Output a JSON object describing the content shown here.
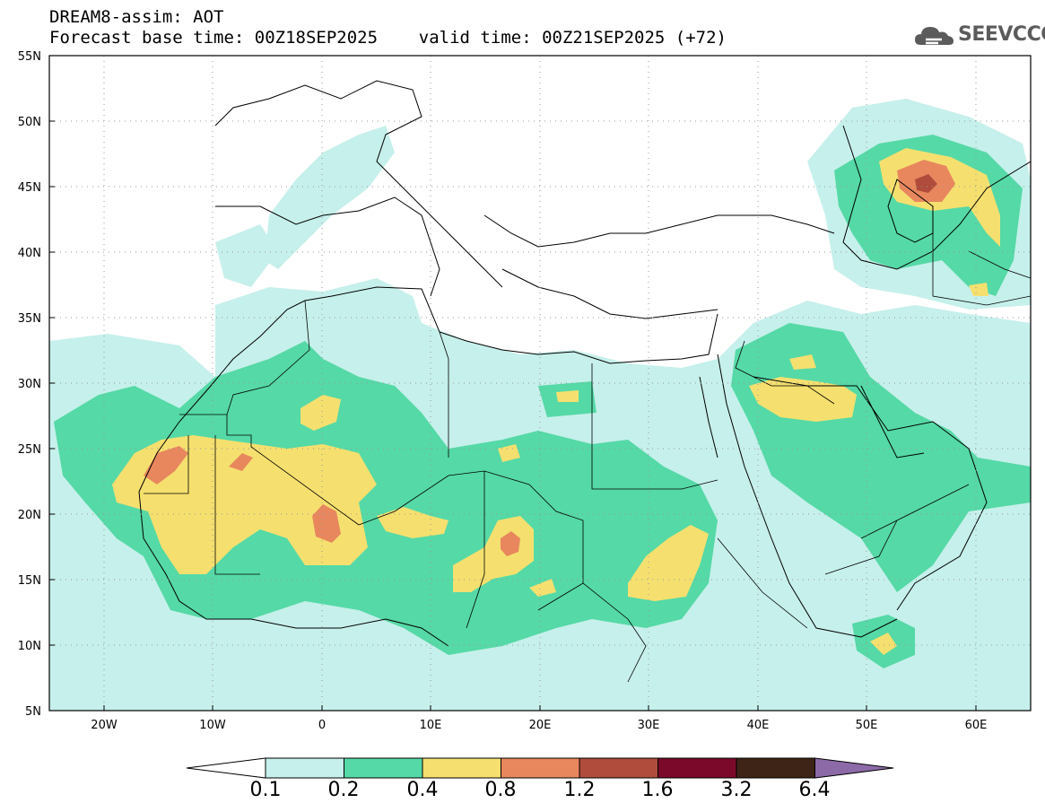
{
  "header": {
    "line1": "DREAM8-assim: AOT",
    "line2": "Forecast base time: 00Z18SEP2025    valid time: 00Z21SEP2025 (+72)"
  },
  "logo": {
    "text": "SEEVCCC",
    "icon": "cloud-logo-icon"
  },
  "map": {
    "lon_range": [
      -25,
      65
    ],
    "lat_range": [
      5,
      55
    ],
    "lat_labels": [
      "55N",
      "50N",
      "45N",
      "40N",
      "35N",
      "30N",
      "25N",
      "20N",
      "15N",
      "10N",
      "5N"
    ],
    "lon_labels": [
      "20W",
      "10W",
      "0",
      "10E",
      "20E",
      "30E",
      "40E",
      "50E",
      "60E"
    ],
    "gridlines": "dotted"
  },
  "colorbar": {
    "levels": [
      "0.1",
      "0.2",
      "0.4",
      "0.8",
      "1.2",
      "1.6",
      "3.2",
      "6.4"
    ],
    "colors": [
      "#ffffff",
      "#c6f0eb",
      "#55d9a6",
      "#f5e06f",
      "#e8875e",
      "#b04c3c",
      "#7b0a2a",
      "#3e2417",
      "#8c6aa8"
    ]
  }
}
